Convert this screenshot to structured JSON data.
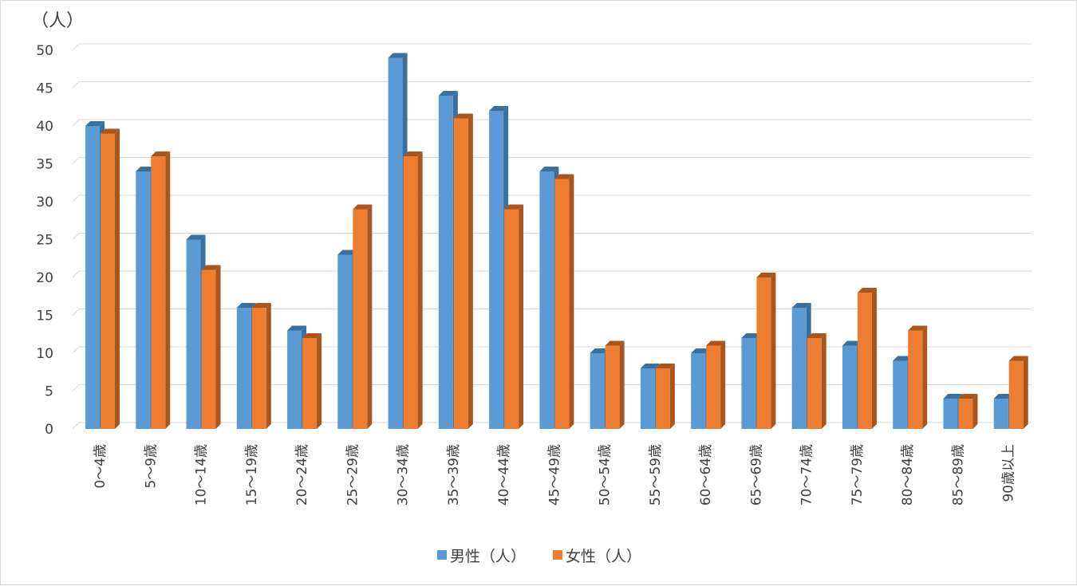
{
  "chart_data": {
    "type": "bar",
    "title": "",
    "xlabel": "",
    "ylabel": "（人）",
    "ylim": [
      0,
      50
    ],
    "yticks": [
      0,
      5,
      10,
      15,
      20,
      25,
      30,
      35,
      40,
      45,
      50
    ],
    "grid": true,
    "legend_position": "bottom",
    "categories": [
      "0～4歳",
      "5～9歳",
      "10～14歳",
      "15～19歳",
      "20～24歳",
      "25～29歳",
      "30～34歳",
      "35～39歳",
      "40～44歳",
      "45～49歳",
      "50～54歳",
      "55～59歳",
      "60～64歳",
      "65～69歳",
      "70～74歳",
      "75～79歳",
      "80～84歳",
      "85～89歳",
      "90歳以上"
    ],
    "series": [
      {
        "name": "男性（人）",
        "color": "#5B9BD5",
        "side_color": "#3A6FA0",
        "values": [
          40,
          34,
          25,
          16,
          13,
          23,
          49,
          44,
          42,
          34,
          10,
          8,
          10,
          12,
          16,
          11,
          9,
          4,
          4
        ]
      },
      {
        "name": "女性（人）",
        "color": "#ED7D31",
        "side_color": "#A9561E",
        "values": [
          39,
          36,
          21,
          16,
          12,
          29,
          36,
          41,
          29,
          33,
          11,
          8,
          11,
          20,
          12,
          18,
          13,
          4,
          9
        ]
      }
    ]
  }
}
